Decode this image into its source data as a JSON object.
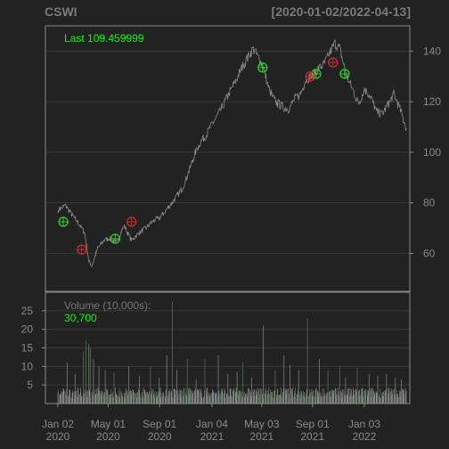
{
  "header": {
    "symbol": "CSWI",
    "date_range": "[2020-01-02/2022-04-13]"
  },
  "colors": {
    "background": "#222222",
    "panel": "#222222",
    "frame": "#8a8a8a",
    "grid": "#3a3a3a",
    "price_line": "#8c8c8c",
    "volume_bar": "#8a8a8a",
    "volume_bar_up": "#5a7a5a",
    "buy_marker": "#2ecc2e",
    "sell_marker": "#cc2a2a",
    "label_green": "#00ff00",
    "label_gray": "#777777",
    "axis_text": "#8a8a8a"
  },
  "chart_data": [
    {
      "type": "line",
      "name": "price",
      "annotation_label": "Last",
      "last_value": "109.459999",
      "ylim": [
        45,
        150
      ],
      "y_ticks": [
        60,
        80,
        100,
        120,
        140
      ],
      "x_tick_labels": [
        [
          "Jan 02",
          "2020"
        ],
        [
          "May 01",
          "2020"
        ],
        [
          "Sep 01",
          "2020"
        ],
        [
          "Jan 04",
          "2021"
        ],
        [
          "May 03",
          "2021"
        ],
        [
          "Sep 01",
          "2021"
        ],
        [
          "Jan 03",
          "2022"
        ]
      ],
      "x_tick_dates": [
        "2020-01-02",
        "2020-05-01",
        "2020-09-01",
        "2021-01-04",
        "2021-05-03",
        "2021-09-01",
        "2022-01-03"
      ],
      "x_range": [
        "2020-01-02",
        "2022-04-13"
      ],
      "anchors": [
        [
          "2020-01-02",
          77
        ],
        [
          "2020-01-20",
          79
        ],
        [
          "2020-02-01",
          76
        ],
        [
          "2020-02-20",
          72
        ],
        [
          "2020-03-06",
          68
        ],
        [
          "2020-03-16",
          57
        ],
        [
          "2020-03-23",
          55
        ],
        [
          "2020-04-06",
          62
        ],
        [
          "2020-04-20",
          65
        ],
        [
          "2020-05-04",
          66
        ],
        [
          "2020-05-20",
          64
        ],
        [
          "2020-06-08",
          71
        ],
        [
          "2020-06-26",
          65
        ],
        [
          "2020-07-13",
          68
        ],
        [
          "2020-07-30",
          70
        ],
        [
          "2020-08-18",
          73
        ],
        [
          "2020-09-01",
          74
        ],
        [
          "2020-09-21",
          78
        ],
        [
          "2020-10-05",
          81
        ],
        [
          "2020-10-26",
          86
        ],
        [
          "2020-11-09",
          92
        ],
        [
          "2020-11-23",
          99
        ],
        [
          "2020-12-07",
          104
        ],
        [
          "2020-12-22",
          107
        ],
        [
          "2021-01-04",
          111
        ],
        [
          "2021-01-19",
          115
        ],
        [
          "2021-02-01",
          119
        ],
        [
          "2021-02-16",
          124
        ],
        [
          "2021-03-01",
          128
        ],
        [
          "2021-03-15",
          133
        ],
        [
          "2021-03-29",
          137
        ],
        [
          "2021-04-12",
          141
        ],
        [
          "2021-04-26",
          137
        ],
        [
          "2021-05-06",
          134
        ],
        [
          "2021-05-20",
          125
        ],
        [
          "2021-06-04",
          120
        ],
        [
          "2021-06-21",
          118
        ],
        [
          "2021-07-06",
          117
        ],
        [
          "2021-07-20",
          121
        ],
        [
          "2021-08-03",
          123
        ],
        [
          "2021-08-17",
          129
        ],
        [
          "2021-09-01",
          130
        ],
        [
          "2021-09-15",
          133
        ],
        [
          "2021-09-30",
          135
        ],
        [
          "2021-10-14",
          140
        ],
        [
          "2021-10-25",
          143
        ],
        [
          "2021-11-05",
          141
        ],
        [
          "2021-11-22",
          130
        ],
        [
          "2021-12-06",
          125
        ],
        [
          "2021-12-20",
          119
        ],
        [
          "2022-01-03",
          125
        ],
        [
          "2022-01-18",
          122
        ],
        [
          "2022-02-01",
          116
        ],
        [
          "2022-02-15",
          115
        ],
        [
          "2022-03-01",
          119
        ],
        [
          "2022-03-15",
          123
        ],
        [
          "2022-03-29",
          117
        ],
        [
          "2022-04-13",
          109.46
        ]
      ],
      "buy_signals": [
        [
          "2020-01-15",
          72.5
        ],
        [
          "2020-05-18",
          65.8
        ],
        [
          "2021-05-05",
          133.5
        ],
        [
          "2021-09-10",
          131
        ],
        [
          "2021-11-17",
          131
        ]
      ],
      "sell_signals": [
        [
          "2020-02-28",
          61.5
        ],
        [
          "2020-06-26",
          72.5
        ],
        [
          "2021-08-27",
          130
        ],
        [
          "2021-10-20",
          135.5
        ]
      ]
    },
    {
      "type": "bar",
      "name": "volume",
      "title_text": "Volume (10,000s):",
      "last_value": "30,700",
      "ylim": [
        0,
        30
      ],
      "y_ticks": [
        5,
        10,
        15,
        20,
        25
      ],
      "base_level": 3.2,
      "spikes": [
        [
          "2020-01-24",
          11
        ],
        [
          "2020-02-12",
          8
        ],
        [
          "2020-03-03",
          14
        ],
        [
          "2020-03-09",
          17
        ],
        [
          "2020-03-16",
          16
        ],
        [
          "2020-03-20",
          15
        ],
        [
          "2020-03-27",
          12
        ],
        [
          "2020-04-09",
          10
        ],
        [
          "2020-04-24",
          9
        ],
        [
          "2020-05-15",
          8.5
        ],
        [
          "2020-06-19",
          10
        ],
        [
          "2020-07-15",
          7.5
        ],
        [
          "2020-08-10",
          10
        ],
        [
          "2020-08-31",
          7
        ],
        [
          "2020-09-18",
          13
        ],
        [
          "2020-10-01",
          27.5
        ],
        [
          "2020-10-12",
          9
        ],
        [
          "2020-11-06",
          12
        ],
        [
          "2020-11-27",
          6.5
        ],
        [
          "2020-12-18",
          12
        ],
        [
          "2021-01-19",
          13
        ],
        [
          "2021-02-11",
          8
        ],
        [
          "2021-03-05",
          8.5
        ],
        [
          "2021-03-19",
          11
        ],
        [
          "2021-04-09",
          7
        ],
        [
          "2021-05-07",
          21
        ],
        [
          "2021-06-04",
          9
        ],
        [
          "2021-06-25",
          13
        ],
        [
          "2021-07-09",
          10.5
        ],
        [
          "2021-07-30",
          9
        ],
        [
          "2021-08-20",
          23
        ],
        [
          "2021-09-17",
          12
        ],
        [
          "2021-10-08",
          9
        ],
        [
          "2021-11-05",
          10
        ],
        [
          "2021-11-19",
          7
        ],
        [
          "2021-12-17",
          9.5
        ],
        [
          "2022-01-14",
          8
        ],
        [
          "2022-02-04",
          7.5
        ],
        [
          "2022-02-25",
          8
        ],
        [
          "2022-03-18",
          7
        ],
        [
          "2022-04-01",
          6.5
        ]
      ]
    }
  ]
}
